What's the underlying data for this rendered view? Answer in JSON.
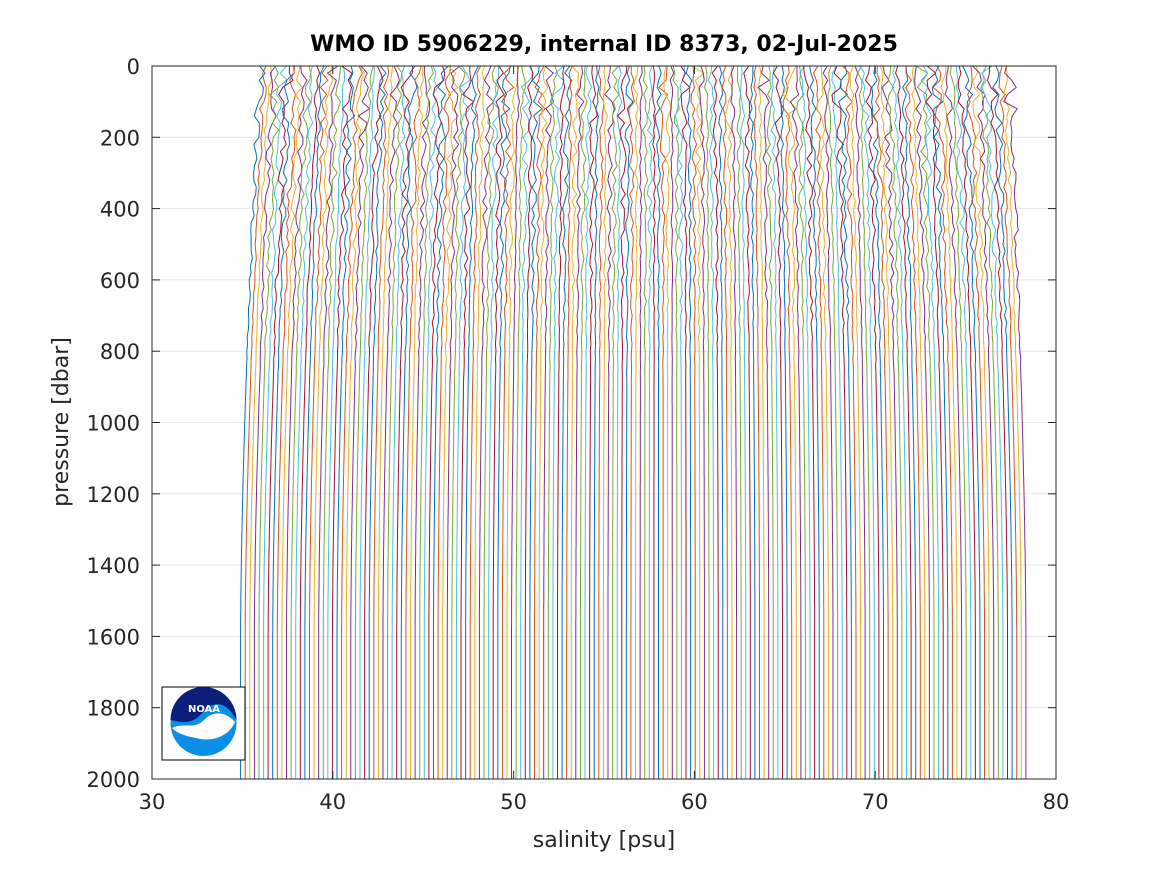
{
  "chart_data": {
    "type": "line",
    "title": "WMO ID 5906229, internal ID 8373, 02-Jul-2025",
    "xlabel": "salinity [psu]",
    "ylabel": "pressure [dbar]",
    "xlim": [
      30,
      80
    ],
    "ylim": [
      0,
      2000
    ],
    "y_reversed": true,
    "x_ticks": [
      30,
      40,
      50,
      60,
      70,
      80
    ],
    "y_ticks": [
      0,
      200,
      400,
      600,
      800,
      1000,
      1200,
      1400,
      1600,
      1800,
      2000
    ],
    "grid": "y-major",
    "profile_count": 172,
    "surface_salinity_first": 36.0,
    "surface_salinity_step": 0.242,
    "deep_salinity_first": 34.9,
    "deep_salinity_step": 0.254,
    "color_cycle": [
      "#0072BD",
      "#D95319",
      "#EDB120",
      "#7E2F8E",
      "#77AC30",
      "#4DBEEE",
      "#A2142F"
    ],
    "logo": "noaa-logo"
  }
}
